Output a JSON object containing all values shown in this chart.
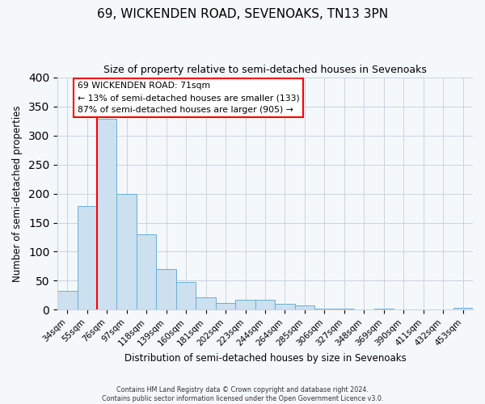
{
  "title": "69, WICKENDEN ROAD, SEVENOAKS, TN13 3PN",
  "subtitle": "Size of property relative to semi-detached houses in Sevenoaks",
  "xlabel": "Distribution of semi-detached houses by size in Sevenoaks",
  "ylabel": "Number of semi-detached properties",
  "categories": [
    "34sqm",
    "55sqm",
    "76sqm",
    "97sqm",
    "118sqm",
    "139sqm",
    "160sqm",
    "181sqm",
    "202sqm",
    "223sqm",
    "244sqm",
    "264sqm",
    "285sqm",
    "306sqm",
    "327sqm",
    "348sqm",
    "369sqm",
    "390sqm",
    "411sqm",
    "432sqm",
    "453sqm"
  ],
  "bar_heights": [
    33,
    178,
    328,
    200,
    130,
    70,
    48,
    22,
    12,
    17,
    17,
    10,
    8,
    2,
    2,
    0,
    2,
    0,
    0,
    0,
    3
  ],
  "bar_color": "#cce0f0",
  "bar_edge_color": "#6aaed6",
  "red_line_index": 2,
  "ylim": [
    0,
    400
  ],
  "yticks": [
    0,
    50,
    100,
    150,
    200,
    250,
    300,
    350,
    400
  ],
  "annotation_title": "69 WICKENDEN ROAD: 71sqm",
  "annotation_line1": "← 13% of semi-detached houses are smaller (133)",
  "annotation_line2": "87% of semi-detached houses are larger (905) →",
  "footer_line1": "Contains HM Land Registry data © Crown copyright and database right 2024.",
  "footer_line2": "Contains public sector information licensed under the Open Government Licence v3.0.",
  "background_color": "#f5f8fb",
  "plot_background_color": "#f5f8fb"
}
